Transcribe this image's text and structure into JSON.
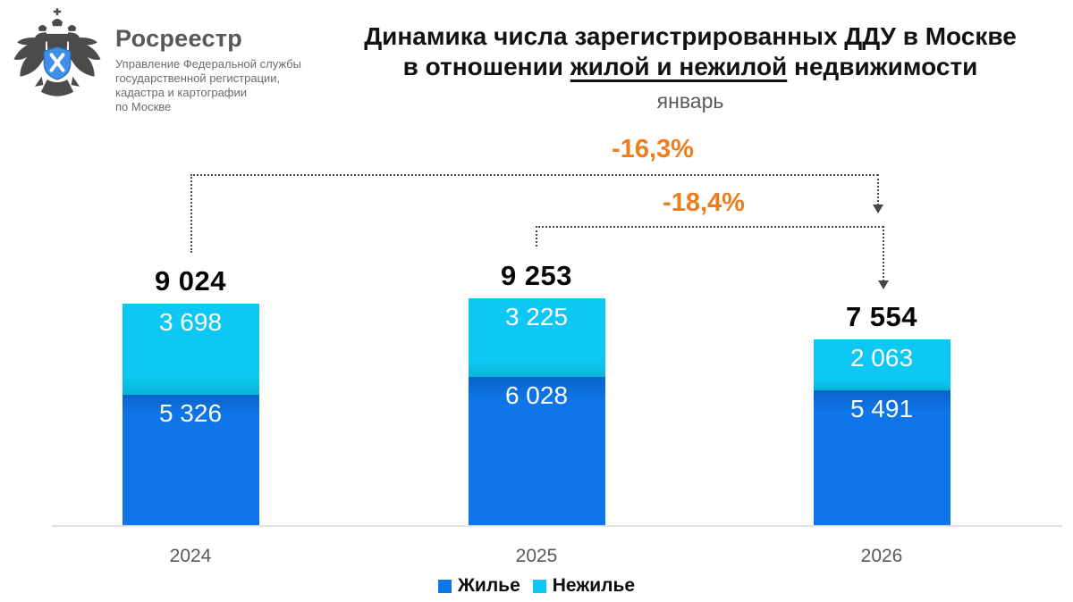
{
  "logo": {
    "brand": "Росреестр",
    "org_lines": [
      "Управление Федеральной службы",
      "государственной регистрации,",
      "кадастра и картографии",
      "по Москве"
    ],
    "emblem": "double-headed-eagle-with-blue-shield",
    "emblem_colors": {
      "eagle": "#4b4b4d",
      "shield": "#3f8fea",
      "shield_symbol": "#ffffff"
    }
  },
  "header": {
    "title_line1": "Динамика числа зарегистрированных ДДУ в Москве",
    "title_line2_prefix": "в отношении ",
    "title_line2_underlined": "жилой и нежилой",
    "title_line2_suffix": " недвижимости",
    "subtitle": "январь"
  },
  "chart_data": {
    "type": "bar",
    "stacked": true,
    "title": "Динамика числа зарегистрированных ДДУ в Москве в отношении жилой и нежилой недвижимости",
    "subtitle": "январь",
    "categories": [
      "2024",
      "2025",
      "2026"
    ],
    "series": [
      {
        "name": "Жилье",
        "color": "#0e76e8",
        "values": [
          5326,
          6028,
          5491
        ],
        "values_display": [
          "5 326",
          "6 028",
          "5 491"
        ]
      },
      {
        "name": "Нежилье",
        "color": "#0cc8f3",
        "values": [
          3698,
          3225,
          2063
        ],
        "values_display": [
          "3 698",
          "3 225",
          "2 063"
        ]
      }
    ],
    "totals": [
      9024,
      9253,
      7554
    ],
    "totals_display": [
      "9 024",
      "9 253",
      "7 554"
    ],
    "annotations": [
      {
        "label": "-16,3%",
        "from": "2024",
        "to": "2026"
      },
      {
        "label": "-18,4%",
        "from": "2025",
        "to": "2026"
      }
    ],
    "annotation_color": "#ee7d1e",
    "legend_position": "bottom",
    "grid": false,
    "ylim": [
      0,
      10000
    ]
  }
}
